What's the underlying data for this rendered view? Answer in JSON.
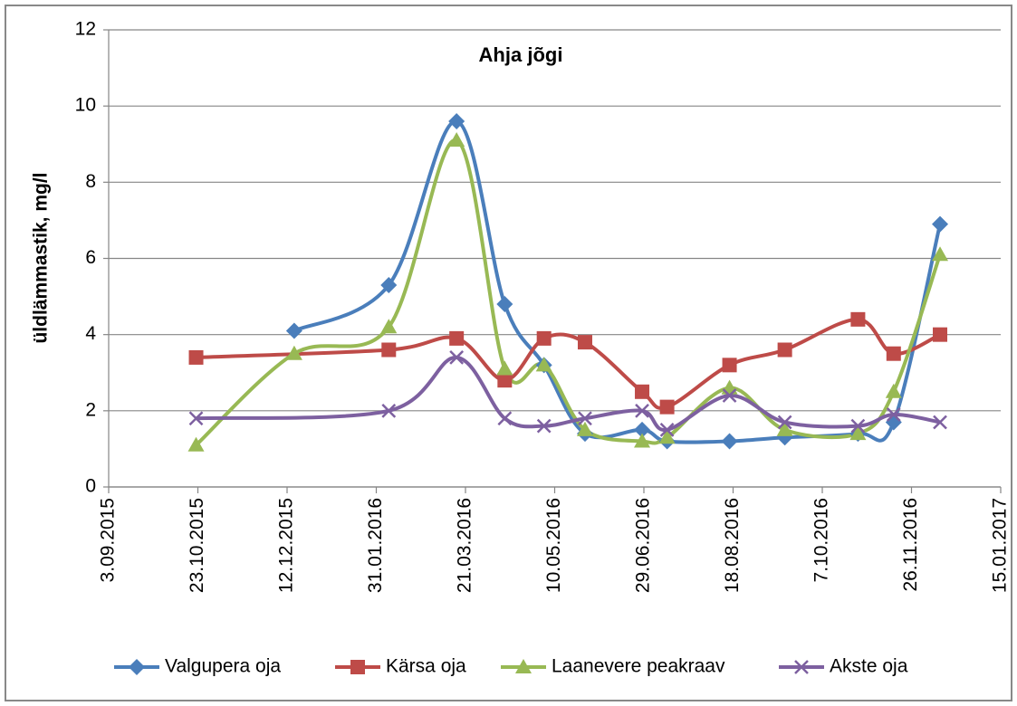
{
  "chart_data": {
    "type": "line",
    "title": "Ahja jõgi",
    "y_label": "üldlämmastik, mg/l",
    "xlim": [
      "2015-09-03",
      "2017-01-15"
    ],
    "xticks": [
      {
        "value": "2015-09-03",
        "label": "3.09.2015"
      },
      {
        "value": "2015-10-23",
        "label": "23.10.2015"
      },
      {
        "value": "2015-12-12",
        "label": "12.12.2015"
      },
      {
        "value": "2016-01-31",
        "label": "31.01.2016"
      },
      {
        "value": "2016-03-21",
        "label": "21.03.2016"
      },
      {
        "value": "2016-05-10",
        "label": "10.05.2016"
      },
      {
        "value": "2016-06-29",
        "label": "29.06.2016"
      },
      {
        "value": "2016-08-18",
        "label": "18.08.2016"
      },
      {
        "value": "2016-10-07",
        "label": "7.10.2016"
      },
      {
        "value": "2016-11-26",
        "label": "26.11.2016"
      },
      {
        "value": "2017-01-15",
        "label": "15.01.2017"
      }
    ],
    "ylim": [
      0,
      12
    ],
    "yticks": [
      0,
      2,
      4,
      6,
      8,
      10,
      12
    ],
    "grid": true,
    "legend": "bottom",
    "series": [
      {
        "name": "Valgupera oja",
        "color": "#4a7ebb",
        "marker": "diamond",
        "x": [
          "2015-12-16",
          "2016-02-07",
          "2016-03-16",
          "2016-04-12",
          "2016-05-04",
          "2016-05-27",
          "2016-06-28",
          "2016-07-12",
          "2016-08-16",
          "2016-09-16",
          "2016-10-27",
          "2016-11-16",
          "2016-12-12"
        ],
        "values": [
          4.1,
          5.3,
          9.6,
          4.8,
          3.2,
          1.4,
          1.5,
          1.2,
          1.2,
          1.3,
          1.4,
          1.7,
          6.9
        ]
      },
      {
        "name": "Kärsa oja",
        "color": "#be4b48",
        "marker": "square",
        "x": [
          "2015-10-22",
          "2016-02-07",
          "2016-03-16",
          "2016-04-12",
          "2016-05-04",
          "2016-05-27",
          "2016-06-28",
          "2016-07-12",
          "2016-08-16",
          "2016-09-16",
          "2016-10-27",
          "2016-11-16",
          "2016-12-12"
        ],
        "values": [
          3.4,
          3.6,
          3.9,
          2.8,
          3.9,
          3.8,
          2.5,
          2.1,
          3.2,
          3.6,
          4.4,
          3.5,
          4.0
        ]
      },
      {
        "name": "Laanevere peakraav",
        "color": "#98b954",
        "marker": "triangle",
        "x": [
          "2015-10-22",
          "2015-12-16",
          "2016-02-07",
          "2016-03-16",
          "2016-04-12",
          "2016-05-04",
          "2016-05-27",
          "2016-06-28",
          "2016-07-12",
          "2016-08-16",
          "2016-09-16",
          "2016-10-27",
          "2016-11-16",
          "2016-12-12"
        ],
        "values": [
          1.1,
          3.5,
          4.2,
          9.1,
          3.1,
          3.2,
          1.5,
          1.2,
          1.3,
          2.6,
          1.5,
          1.4,
          2.5,
          6.1
        ]
      },
      {
        "name": "Akste oja",
        "color": "#7d60a0",
        "marker": "x",
        "x": [
          "2015-10-22",
          "2016-02-07",
          "2016-03-16",
          "2016-04-12",
          "2016-05-04",
          "2016-05-27",
          "2016-06-28",
          "2016-07-12",
          "2016-08-16",
          "2016-09-16",
          "2016-10-27",
          "2016-11-16",
          "2016-12-12"
        ],
        "values": [
          1.8,
          2.0,
          3.4,
          1.8,
          1.6,
          1.8,
          2.0,
          1.5,
          2.4,
          1.7,
          1.6,
          1.9,
          1.7
        ]
      }
    ]
  }
}
